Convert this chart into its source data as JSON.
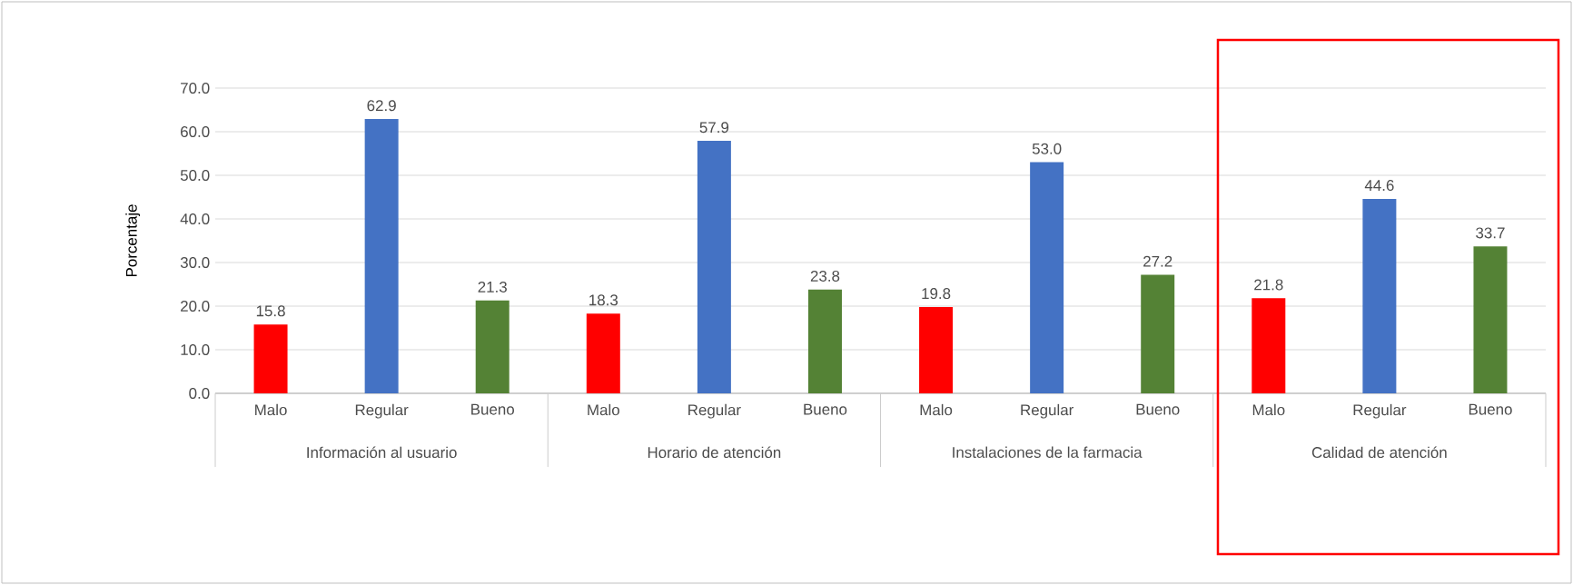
{
  "chart_data": {
    "type": "bar",
    "ylabel": "Porcentaje",
    "categories": [
      "Malo",
      "Regular",
      "Bueno",
      "Malo",
      "Regular",
      "Bueno",
      "Malo",
      "Regular",
      "Bueno",
      "Malo",
      "Regular",
      "Bueno"
    ],
    "values": [
      15.8,
      62.9,
      21.3,
      18.3,
      57.9,
      23.8,
      19.8,
      53.0,
      27.2,
      21.8,
      44.6,
      33.7
    ],
    "colors": [
      "#ff0000",
      "#4472c4",
      "#548235",
      "#ff0000",
      "#4472c4",
      "#548235",
      "#ff0000",
      "#4472c4",
      "#548235",
      "#ff0000",
      "#4472c4",
      "#548235"
    ],
    "annotations": [
      "Información al usuario",
      "Horario de atención",
      "Instalaciones de la farmacia",
      "Calidad de atención"
    ],
    "ylim": [
      0,
      70
    ],
    "yticks": [
      {
        "value": 0,
        "label": "0.0"
      },
      {
        "value": 10,
        "label": "10.0"
      },
      {
        "value": 20,
        "label": "20.0"
      },
      {
        "value": 30,
        "label": "30.0"
      },
      {
        "value": 40,
        "label": "40.0"
      },
      {
        "value": 50,
        "label": "50.0"
      },
      {
        "value": 60,
        "label": "60.0"
      },
      {
        "value": 70,
        "label": "70.0"
      }
    ],
    "grid": "y",
    "value_labels": [
      "15.8",
      "62.9",
      "21.3",
      "18.3",
      "57.9",
      "23.8",
      "19.8",
      "53.0",
      "27.2",
      "21.8",
      "44.6",
      "33.7"
    ]
  }
}
